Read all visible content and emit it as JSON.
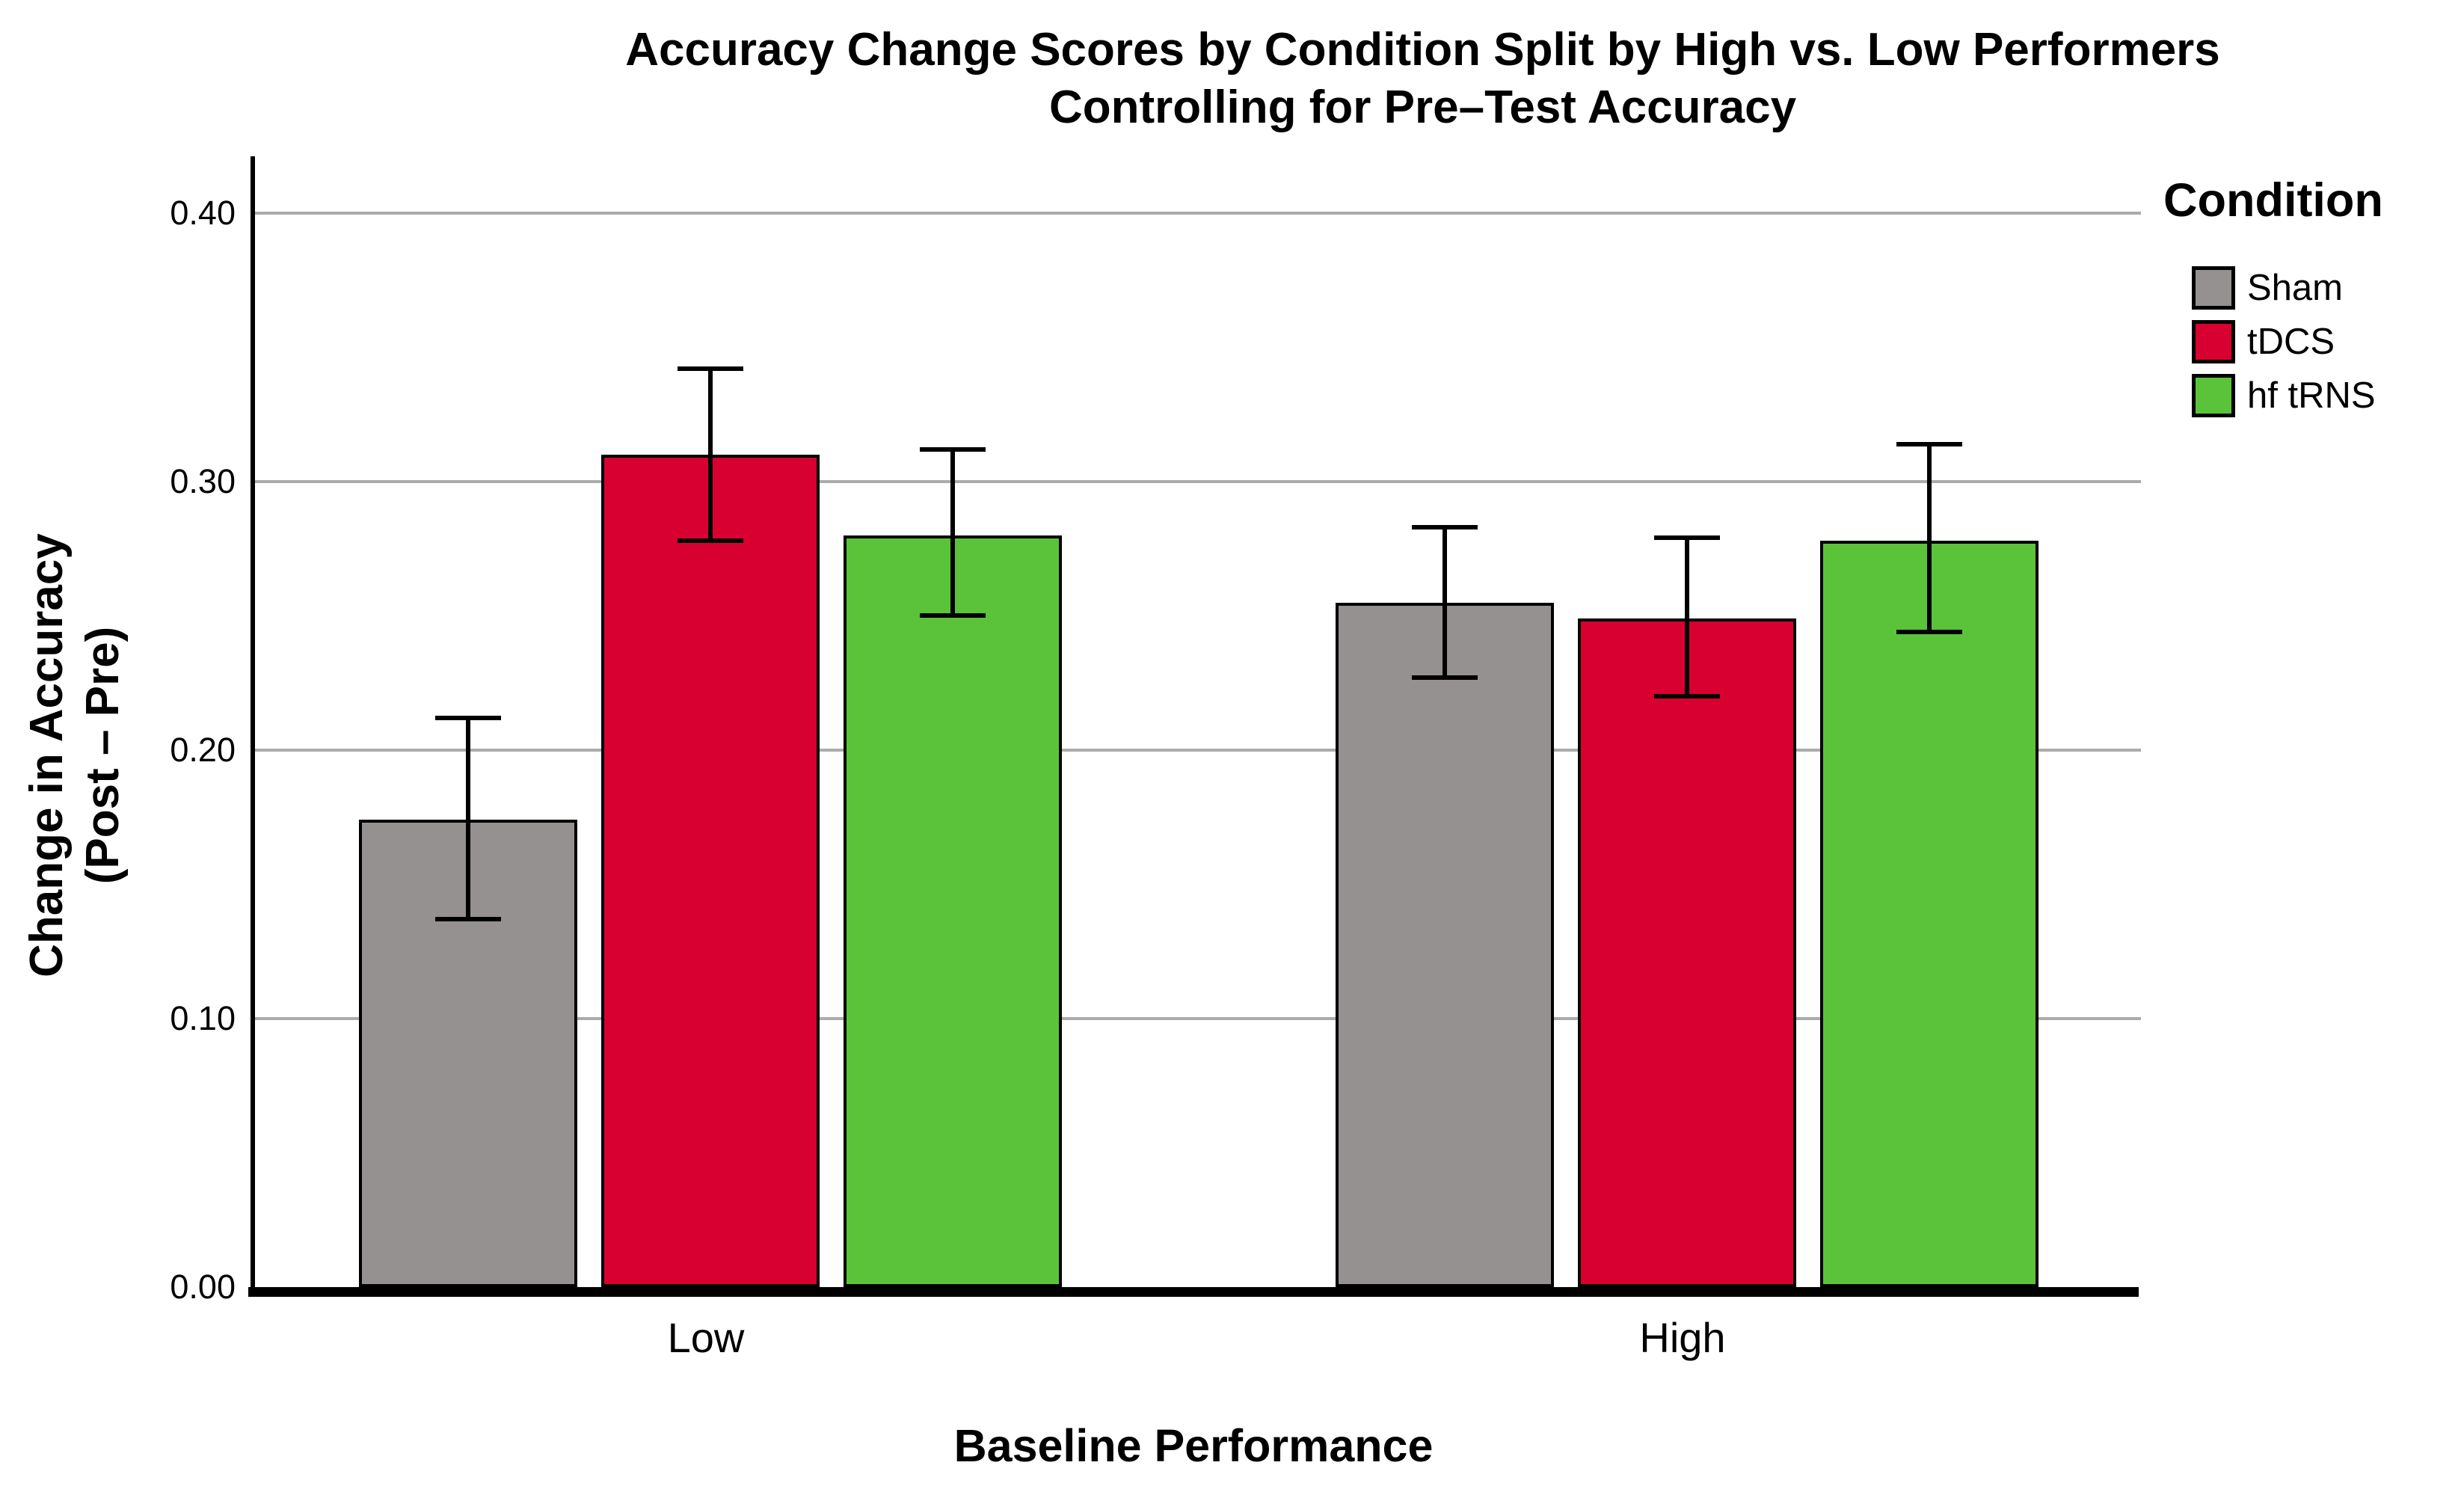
{
  "chart_data": {
    "type": "bar",
    "title": "Accuracy Change Scores by Condition Split by High vs. Low Performers Controlling for Pre-Test Accuracy",
    "title_line1": "Accuracy Change Scores by Condition Split by High vs. Low Performers",
    "title_line2": "Controlling for Pre–Test Accuracy",
    "xlabel": "Baseline Performance",
    "ylabel_line1": "Change in Accuracy",
    "ylabel_line2": "(Post – Pre)",
    "categories": [
      "Low",
      "High"
    ],
    "series": [
      {
        "name": "Sham",
        "color": "#949190",
        "values": [
          0.174,
          0.255
        ],
        "ci_low": [
          0.137,
          0.227
        ],
        "ci_high": [
          0.212,
          0.283
        ]
      },
      {
        "name": "tDCS",
        "color": "#D80030",
        "values": [
          0.31,
          0.249
        ],
        "ci_low": [
          0.278,
          0.22
        ],
        "ci_high": [
          0.342,
          0.279
        ]
      },
      {
        "name": "hf tRNS",
        "color": "#5BC33A",
        "values": [
          0.28,
          0.278
        ],
        "ci_low": [
          0.25,
          0.244
        ],
        "ci_high": [
          0.312,
          0.314
        ]
      }
    ],
    "ylim": [
      0.0,
      0.42
    ],
    "yticks": [
      {
        "value": 0.0,
        "label": "0.00"
      },
      {
        "value": 0.1,
        "label": "0.10"
      },
      {
        "value": 0.2,
        "label": "0.20"
      },
      {
        "value": 0.3,
        "label": "0.30"
      },
      {
        "value": 0.4,
        "label": "0.40"
      }
    ],
    "grid": "horizontal-gridlines-at-yticks",
    "legend_title": "Condition",
    "legend_position": "right",
    "error_bars": "95%-CI style whisker caps",
    "colors": {
      "gridline": "#ABABAB",
      "axis": "#000000",
      "bar_border": "#000000",
      "background": "#ffffff"
    }
  }
}
